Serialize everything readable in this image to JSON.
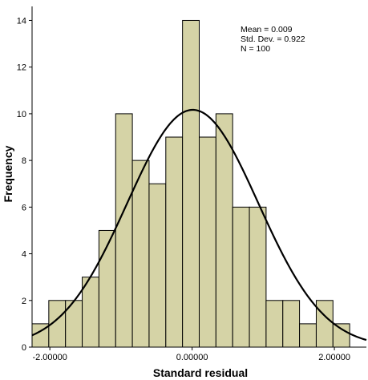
{
  "chart_data": {
    "type": "bar",
    "subtype": "histogram",
    "xlabel": "Standard residual",
    "ylabel": "Frequency",
    "x_ticks": [
      {
        "value": -2,
        "label": "-2.00000"
      },
      {
        "value": 0,
        "label": "0.00000"
      },
      {
        "value": 2,
        "label": "2.00000"
      }
    ],
    "y_ticks": [
      0,
      2,
      4,
      6,
      8,
      10,
      12,
      14
    ],
    "xlim": [
      -2.25,
      2.45
    ],
    "ylim": [
      0,
      14.6
    ],
    "bin_width": 0.235,
    "bins": [
      {
        "start": -2.25,
        "count": 1
      },
      {
        "start": -2.015,
        "count": 2
      },
      {
        "start": -1.78,
        "count": 2
      },
      {
        "start": -1.545,
        "count": 3
      },
      {
        "start": -1.31,
        "count": 5
      },
      {
        "start": -1.075,
        "count": 10
      },
      {
        "start": -0.84,
        "count": 8
      },
      {
        "start": -0.605,
        "count": 7
      },
      {
        "start": -0.37,
        "count": 9
      },
      {
        "start": -0.135,
        "count": 14
      },
      {
        "start": 0.1,
        "count": 9
      },
      {
        "start": 0.335,
        "count": 10
      },
      {
        "start": 0.57,
        "count": 6
      },
      {
        "start": 0.805,
        "count": 6
      },
      {
        "start": 1.04,
        "count": 2
      },
      {
        "start": 1.275,
        "count": 2
      },
      {
        "start": 1.51,
        "count": 1
      },
      {
        "start": 1.745,
        "count": 2
      },
      {
        "start": 1.98,
        "count": 1
      }
    ],
    "normal_curve": {
      "mean": 0.009,
      "std": 0.922,
      "n": 100
    },
    "stats_lines": [
      "Mean = 0.009",
      "Std. Dev. = 0.922",
      "N = 100"
    ],
    "bar_color": "#d5d3a6",
    "bar_edge_color": "#000000",
    "curve_color": "#000000",
    "grid": false
  }
}
